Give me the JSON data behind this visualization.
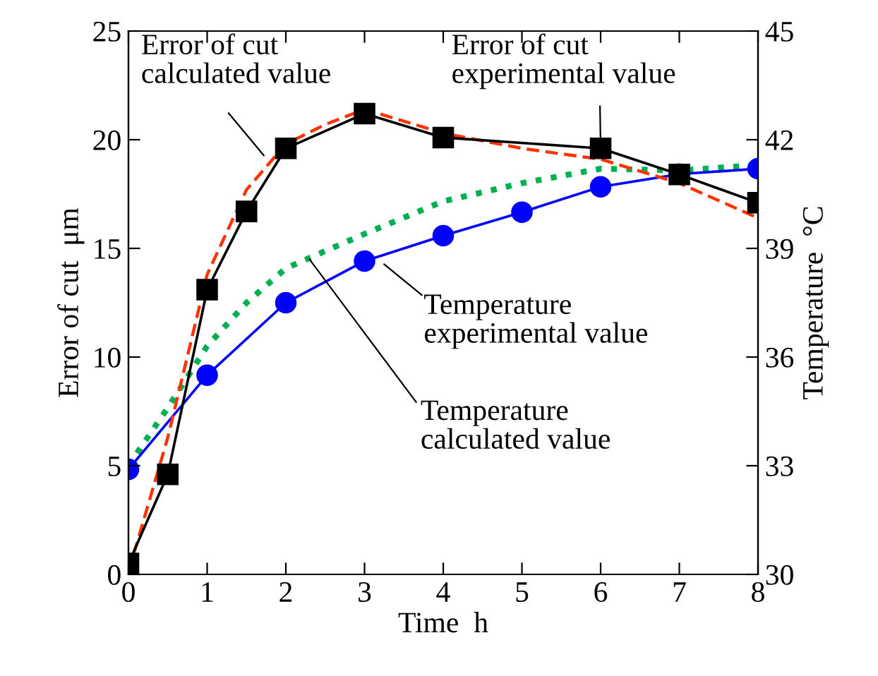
{
  "chart_data": {
    "type": "line",
    "xlabel": "Time  h",
    "ylabel": "Error of cut  μm",
    "y2label": "Temperature  °C",
    "xlim": [
      0,
      8
    ],
    "xticks": [
      0,
      1,
      2,
      3,
      4,
      5,
      6,
      7,
      8
    ],
    "ylim": [
      0,
      25
    ],
    "yticks": [
      0,
      5,
      10,
      15,
      20,
      25
    ],
    "y2lim": [
      30,
      45
    ],
    "y2ticks": [
      30,
      33,
      36,
      39,
      42,
      45
    ],
    "series": [
      {
        "color": "#ff3300",
        "line_style": "dashed",
        "marker": "none",
        "x": [
          0,
          0.5,
          1,
          1.5,
          2,
          2.5,
          3,
          4,
          5,
          6,
          7,
          8
        ],
        "values": [
          0.1,
          6.3,
          13.8,
          17.7,
          19.8,
          20.7,
          21.4,
          20.3,
          19.6,
          19.1,
          18.0,
          16.4
        ]
      },
      {
        "color": "#000000",
        "line_style": "solid",
        "marker": "square",
        "x": [
          0,
          0.5,
          1,
          1.5,
          2,
          3,
          4,
          6,
          7,
          8
        ],
        "values": [
          0.5,
          4.6,
          13.1,
          16.7,
          19.6,
          21.2,
          20.1,
          19.6,
          18.4,
          17.1
        ]
      },
      {
        "color": "#00b050",
        "line_style": "dotted",
        "marker": "none",
        "axis": "y2",
        "x": [
          0,
          0.5,
          1,
          1.5,
          2,
          3,
          4,
          5,
          6,
          7,
          8
        ],
        "values": [
          33.0,
          34.6,
          36.3,
          37.5,
          38.45,
          39.4,
          40.3,
          40.8,
          41.2,
          41.15,
          41.3
        ]
      },
      {
        "color": "#0000ff",
        "line_style": "solid",
        "marker": "circle",
        "axis": "y2",
        "x": [
          0,
          1,
          2,
          3,
          4,
          5,
          6,
          7,
          8
        ],
        "values": [
          32.9,
          35.5,
          37.5,
          38.65,
          39.35,
          40.0,
          40.7,
          41.05,
          41.2
        ]
      }
    ],
    "annotations": [
      "Error of cut\ncalculated value",
      {
        "text": "Error of cut\nexperimental value",
        "x": 6,
        "y": 19.6
      },
      "Temperature\nexperimental value",
      {
        "text": "Temperature\ncalculated value",
        "x": 2.3,
        "y": 14.5
      }
    ]
  }
}
